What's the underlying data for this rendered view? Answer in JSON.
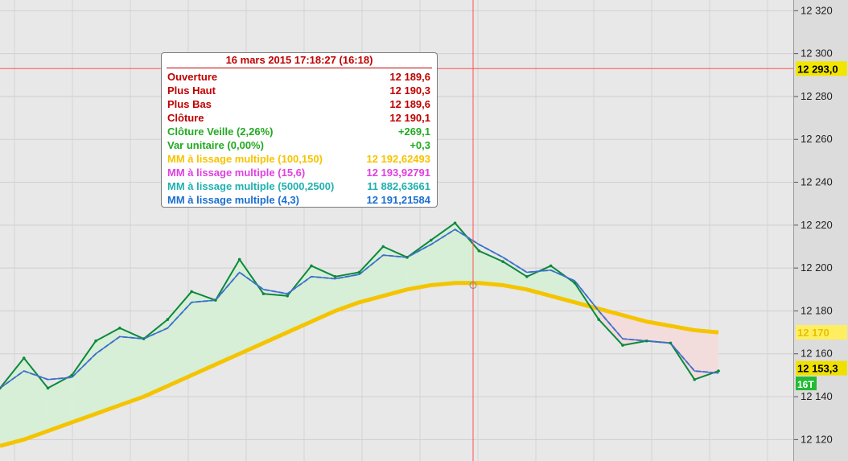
{
  "tooltip": {
    "title": "16 mars 2015 17:18:27 (16:18)",
    "rows": [
      {
        "label": "Ouverture",
        "value": "12 189,6",
        "color": "#c00000"
      },
      {
        "label": "Plus Haut",
        "value": "12 190,3",
        "color": "#c00000"
      },
      {
        "label": "Plus Bas",
        "value": "12 189,6",
        "color": "#c00000"
      },
      {
        "label": "Clôture",
        "value": "12 190,1",
        "color": "#c00000"
      },
      {
        "label": "Clôture Veille (2,26%)",
        "value": "+269,1",
        "color": "#22aa22"
      },
      {
        "label": "Var unitaire (0,00%)",
        "value": "+0,3",
        "color": "#22aa22"
      },
      {
        "label": "MM à lissage multiple (100,150)",
        "value": "12 192,62493",
        "color": "#f5c400"
      },
      {
        "label": "MM à lissage multiple (15,6)",
        "value": "12 193,92791",
        "color": "#e040e0"
      },
      {
        "label": "MM à lissage multiple (5000,2500)",
        "value": "11 882,63661",
        "color": "#20b0b0"
      },
      {
        "label": "MM à lissage multiple (4,3)",
        "value": "12 191,21584",
        "color": "#1a6fd0"
      }
    ]
  },
  "axis_badges": {
    "crosshair_price": "12 293,0",
    "ma_long_price": "12 170",
    "last_price": "12 153,3",
    "tick_volume": "16T"
  },
  "colors": {
    "price": "#0a8a3a",
    "ma_long": "#f5c400",
    "ma_fast": "#e040e0",
    "ma_smooth": "#1f7ec8",
    "fill_up": "#d7efd7",
    "fill_down": "#f3dcdc",
    "crosshair": "#ff5050",
    "last_price_badge": "#f0e000",
    "tick_badge": "#22bb33"
  },
  "chart_data": {
    "type": "line",
    "title": "",
    "xlabel": "",
    "ylabel": "",
    "ylim": [
      12110,
      12325
    ],
    "yticks": [
      12120,
      12140,
      12160,
      12180,
      12200,
      12220,
      12240,
      12260,
      12280,
      12300,
      12320
    ],
    "ytick_labels": [
      "12 120",
      "12 140",
      "12 160",
      "12 180",
      "12 200",
      "12 220",
      "12 240",
      "12 260",
      "12 280",
      "12 300",
      "12 320"
    ],
    "x": [
      0,
      4,
      8,
      12,
      16,
      20,
      24,
      28,
      32,
      36,
      40,
      44,
      48,
      52,
      56,
      60,
      64,
      68,
      72,
      76,
      80,
      84,
      88,
      92,
      96,
      100,
      104,
      108,
      112,
      116,
      120
    ],
    "series": [
      {
        "values": [
          12144,
          12158,
          12144,
          12150,
          12166,
          12172,
          12167,
          12176,
          12189,
          12185,
          12204,
          12188,
          12187,
          12201,
          12196,
          12198,
          12210,
          12205,
          12213,
          12221,
          12208,
          12203,
          12196,
          12201,
          12193,
          12176,
          12164,
          12166,
          12165,
          12148,
          12152
        ]
      },
      {
        "values": [
          12144,
          12152,
          12148,
          12149,
          12160,
          12168,
          12167,
          12172,
          12184,
          12185,
          12198,
          12190,
          12188,
          12196,
          12195,
          12197,
          12206,
          12205,
          12211,
          12218,
          12211,
          12205,
          12198,
          12199,
          12194,
          12180,
          12167,
          12166,
          12165,
          12152,
          12151
        ]
      },
      {
        "values": [
          12117,
          12120,
          12124,
          12128,
          12132,
          12136,
          12140,
          12145,
          12150,
          12155,
          12160,
          12165,
          12170,
          12175,
          12180,
          12184,
          12187,
          12190,
          12192,
          12193,
          12193,
          12192,
          12190,
          12187,
          12184,
          12181,
          12178,
          12175,
          12173,
          12171,
          12170
        ]
      }
    ]
  }
}
